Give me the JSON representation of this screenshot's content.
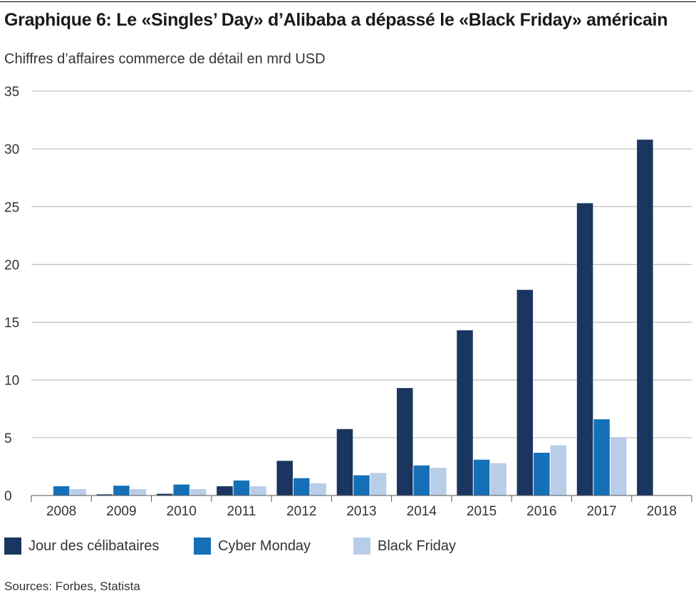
{
  "title": "Graphique 6: Le «Singles’ Day» d’Alibaba a dépassé le «Black Friday» américain",
  "subtitle": "Chiffres d’affaires commerce de détail en mrd USD",
  "source": "Sources: Forbes, Statista",
  "colors": {
    "singles_day": "#1a3660",
    "cyber_monday": "#1570b8",
    "black_friday": "#b8cde8",
    "grid": "#b0b0b0",
    "axis": "#555555"
  },
  "legend": [
    {
      "label": "Jour des célibataires",
      "color": "#1a3660"
    },
    {
      "label": "Cyber Monday",
      "color": "#1570b8"
    },
    {
      "label": "Black Friday",
      "color": "#b8cde8"
    }
  ],
  "chart_data": {
    "type": "bar",
    "title": "Graphique 6: Le «Singles’ Day» d’Alibaba a dépassé le «Black Friday» américain",
    "ylabel": "Chiffres d’affaires commerce de détail en mrd USD",
    "xlabel": "",
    "categories": [
      "2008",
      "2009",
      "2010",
      "2011",
      "2012",
      "2013",
      "2014",
      "2015",
      "2016",
      "2017",
      "2018"
    ],
    "ylim": [
      0,
      35
    ],
    "yticks": [
      0,
      5,
      10,
      15,
      20,
      25,
      30,
      35
    ],
    "grid": true,
    "legend_position": "bottom",
    "series": [
      {
        "name": "Jour des célibataires",
        "color": "#1a3660",
        "values": [
          null,
          0.1,
          0.15,
          0.8,
          3.0,
          5.75,
          9.3,
          14.3,
          17.8,
          25.3,
          30.8
        ]
      },
      {
        "name": "Cyber Monday",
        "color": "#1570b8",
        "values": [
          0.8,
          0.85,
          0.95,
          1.3,
          1.5,
          1.75,
          2.6,
          3.1,
          3.7,
          6.6,
          null
        ]
      },
      {
        "name": "Black Friday",
        "color": "#b8cde8",
        "values": [
          0.55,
          0.55,
          0.55,
          0.8,
          1.05,
          1.95,
          2.4,
          2.8,
          4.35,
          5.05,
          null
        ]
      }
    ]
  }
}
